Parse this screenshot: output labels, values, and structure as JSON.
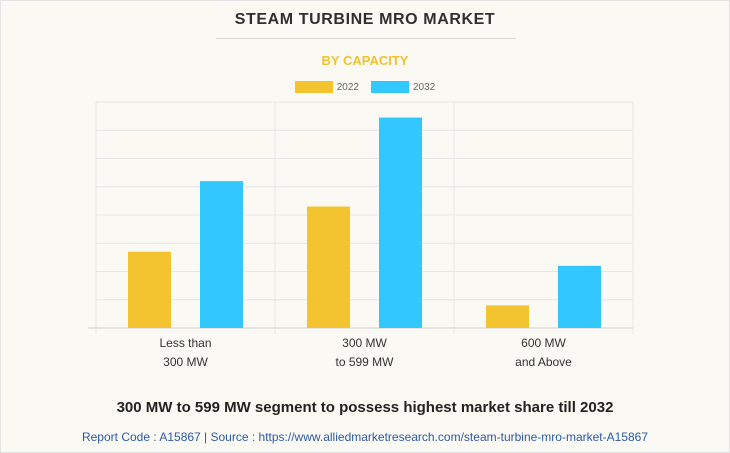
{
  "header": {
    "title": "STEAM TURBINE MRO MARKET",
    "subtitle": "BY CAPACITY"
  },
  "colors": {
    "series_2022": "#f4c430",
    "series_2032": "#33c7ff",
    "grid": "#e6e6e6",
    "background": "#fbf9f4"
  },
  "chart_data": {
    "type": "bar",
    "title": "STEAM TURBINE MRO MARKET",
    "subtitle": "BY CAPACITY",
    "categories": [
      [
        "Less than",
        "300 MW"
      ],
      [
        "300 MW",
        "to 599 MW"
      ],
      [
        "600 MW",
        "and Above"
      ]
    ],
    "series": [
      {
        "name": "2022",
        "values": [
          2.7,
          4.3,
          0.8
        ]
      },
      {
        "name": "2032",
        "values": [
          5.2,
          7.45,
          2.2
        ]
      }
    ],
    "ylim": [
      0,
      8
    ],
    "y_gridlines": 8,
    "xlabel": "",
    "ylabel": "",
    "grid": true,
    "legend": "top-center",
    "y_tick_labels_shown": false
  },
  "headline": "300 MW to 599 MW segment to possess highest market share till 2032",
  "footer": "Report Code : A15867  |  Source : https://www.alliedmarketresearch.com/steam-turbine-mro-market-A15867"
}
